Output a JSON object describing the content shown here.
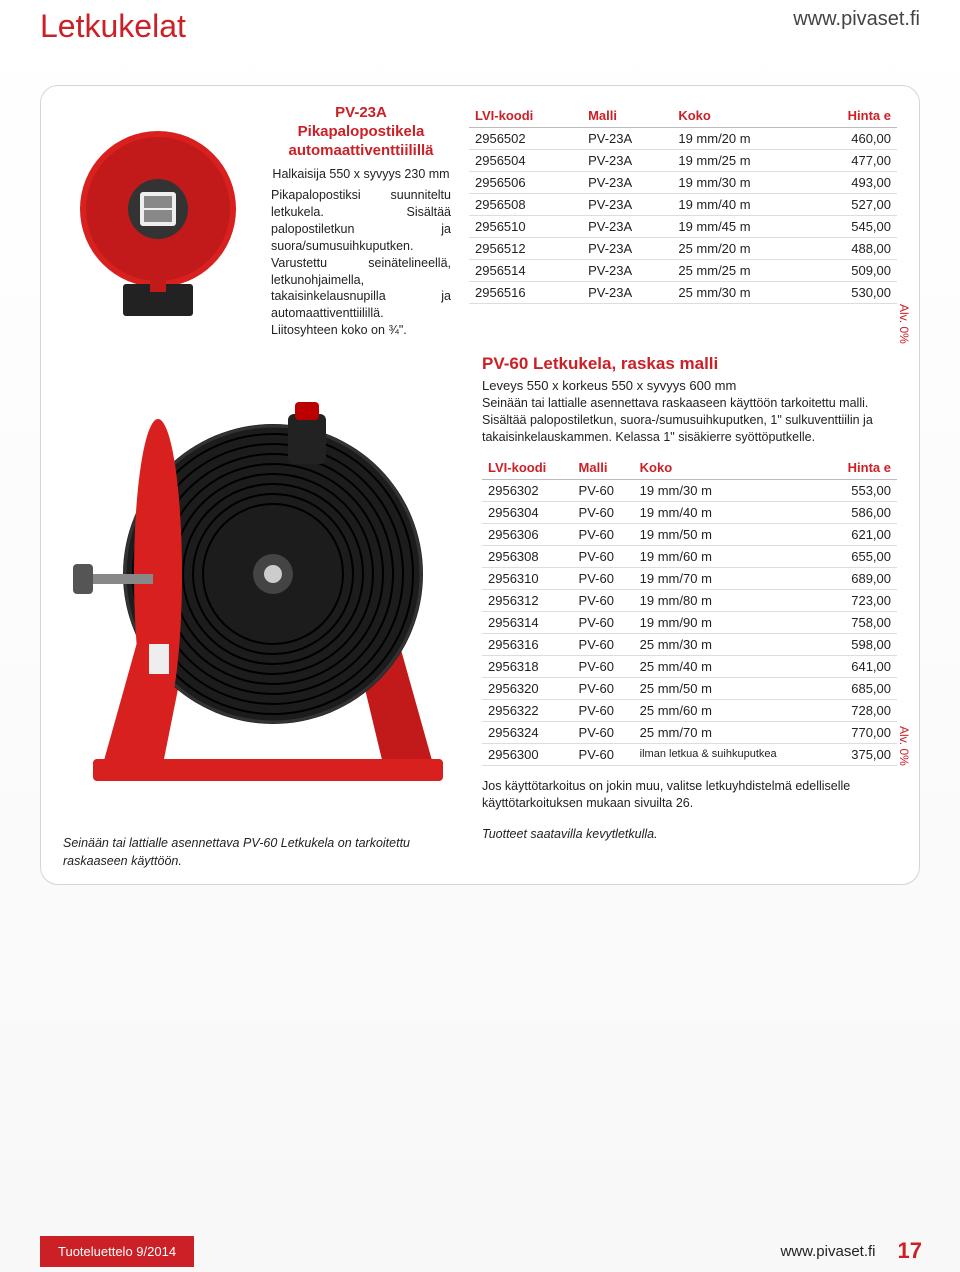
{
  "header": {
    "section": "Letkukelat",
    "url": "www.pivaset.fi"
  },
  "product1": {
    "title": "PV-23A Pikapalopostikela automaattiventtiilillä",
    "subhead": "Halkaisija 550 x syvyys 230 mm",
    "desc": "Pikapalopostiksi suunniteltu letkukela. Sisältää palopostiletkun ja suora/sumusuihkuputken. Varustettu seinätelineellä, letkunohjaimella, takaisinkelausnupilla ja automaattiventtiilillä. Liitosyhteen koko on ¾\"."
  },
  "table1": {
    "headers": {
      "code": "LVI-koodi",
      "model": "Malli",
      "size": "Koko",
      "price": "Hinta e"
    },
    "rows": [
      {
        "code": "2956502",
        "model": "PV-23A",
        "size": "19 mm/20 m",
        "price": "460,00"
      },
      {
        "code": "2956504",
        "model": "PV-23A",
        "size": "19 mm/25 m",
        "price": "477,00"
      },
      {
        "code": "2956506",
        "model": "PV-23A",
        "size": "19 mm/30 m",
        "price": "493,00"
      },
      {
        "code": "2956508",
        "model": "PV-23A",
        "size": "19 mm/40 m",
        "price": "527,00"
      },
      {
        "code": "2956510",
        "model": "PV-23A",
        "size": "19 mm/45 m",
        "price": "545,00"
      },
      {
        "code": "2956512",
        "model": "PV-23A",
        "size": "25 mm/20 m",
        "price": "488,00"
      },
      {
        "code": "2956514",
        "model": "PV-23A",
        "size": "25 mm/25 m",
        "price": "509,00"
      },
      {
        "code": "2956516",
        "model": "PV-23A",
        "size": "25 mm/30 m",
        "price": "530,00"
      }
    ]
  },
  "alv": "Alv. 0%",
  "product2": {
    "title": "PV-60 Letkukela, raskas malli",
    "lead": "Leveys 550 x korkeus 550 x syvyys 600 mm",
    "body": "Seinään tai lattialle asennettava raskaaseen käyttöön tarkoitettu malli. Sisältää palopostiletkun, suora-/sumusuihkuputken, 1\" sulkuventtiilin ja takaisinkelauskammen. Kelassa 1\" sisäkierre syöttöputkelle.",
    "caption1": "Seinään tai lattialle asennettava ",
    "caption_em": "PV-60 Letkukela",
    "caption2": " on tarkoitettu raskaaseen käyttöön.",
    "note": "Jos käyttötarkoitus on jokin muu, valitse letkuyhdistelmä edelliselle käyttötarkoituksen mukaan sivuilta 26.",
    "note2": "Tuotteet saatavilla kevytletkulla."
  },
  "table2": {
    "headers": {
      "code": "LVI-koodi",
      "model": "Malli",
      "size": "Koko",
      "price": "Hinta e"
    },
    "rows": [
      {
        "code": "2956302",
        "model": "PV-60",
        "size": "19 mm/30 m",
        "price": "553,00"
      },
      {
        "code": "2956304",
        "model": "PV-60",
        "size": "19 mm/40 m",
        "price": "586,00"
      },
      {
        "code": "2956306",
        "model": "PV-60",
        "size": "19 mm/50 m",
        "price": "621,00"
      },
      {
        "code": "2956308",
        "model": "PV-60",
        "size": "19 mm/60 m",
        "price": "655,00"
      },
      {
        "code": "2956310",
        "model": "PV-60",
        "size": "19 mm/70 m",
        "price": "689,00"
      },
      {
        "code": "2956312",
        "model": "PV-60",
        "size": "19 mm/80 m",
        "price": "723,00"
      },
      {
        "code": "2956314",
        "model": "PV-60",
        "size": "19 mm/90 m",
        "price": "758,00"
      },
      {
        "code": "2956316",
        "model": "PV-60",
        "size": "25 mm/30 m",
        "price": "598,00"
      },
      {
        "code": "2956318",
        "model": "PV-60",
        "size": "25 mm/40 m",
        "price": "641,00"
      },
      {
        "code": "2956320",
        "model": "PV-60",
        "size": "25 mm/50 m",
        "price": "685,00"
      },
      {
        "code": "2956322",
        "model": "PV-60",
        "size": "25 mm/60 m",
        "price": "728,00"
      },
      {
        "code": "2956324",
        "model": "PV-60",
        "size": "25 mm/70 m",
        "price": "770,00"
      },
      {
        "code": "2956300",
        "model": "PV-60",
        "size": "ilman letkua & suihkuputkea",
        "price": "375,00",
        "small": true
      }
    ]
  },
  "footer": {
    "bar": "Tuoteluettelo 9/2014",
    "url": "www.pivaset.fi",
    "page": "17"
  },
  "colors": {
    "accent": "#cc2027",
    "text": "#222222",
    "border": "#d5d5d5",
    "row_border": "#dddddd"
  }
}
